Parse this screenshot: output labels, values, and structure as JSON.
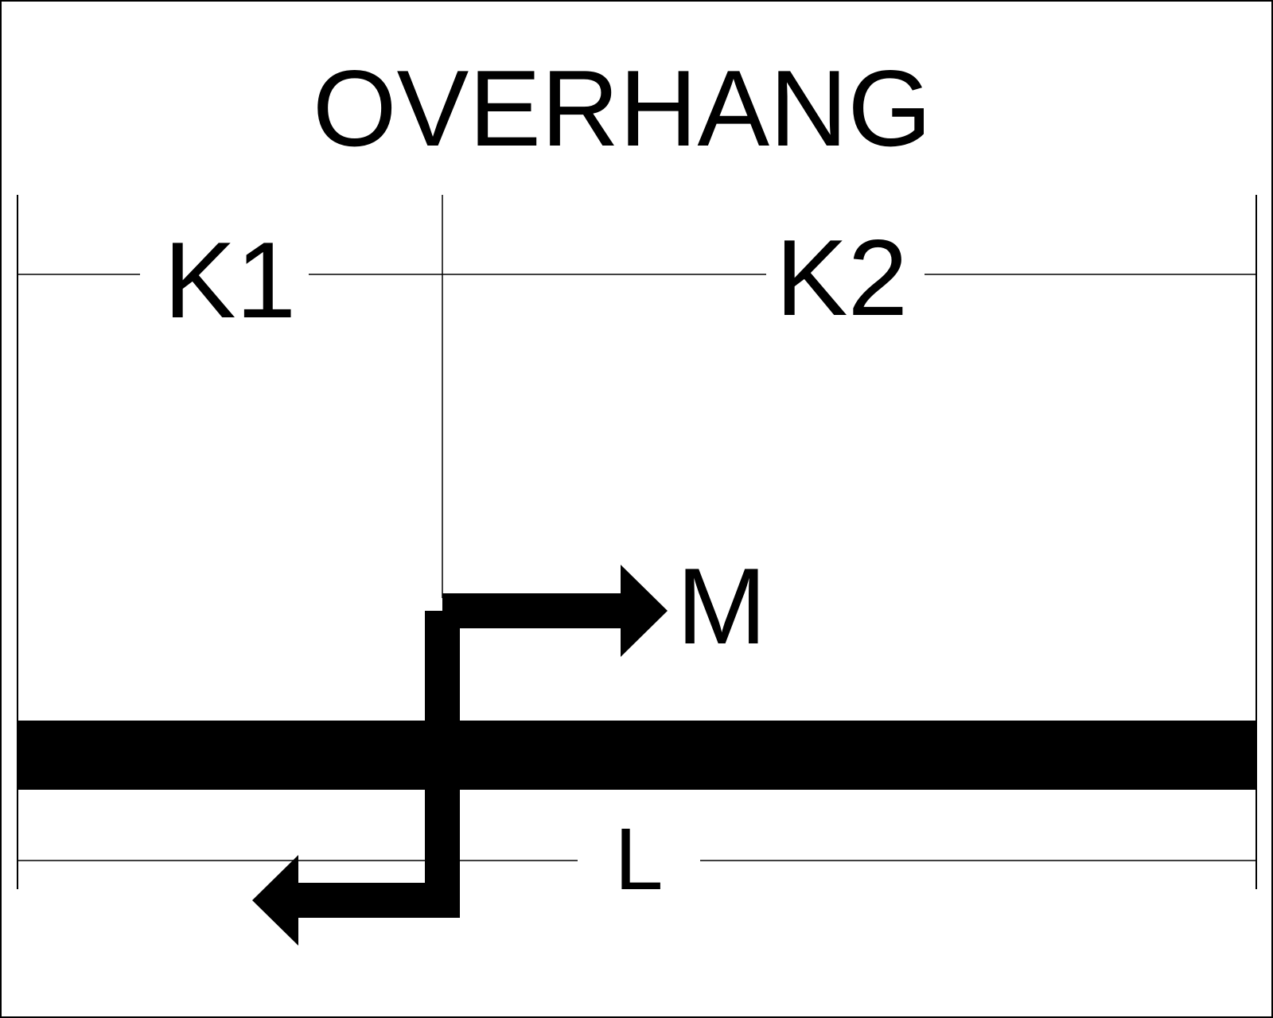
{
  "title": "OVERHANG",
  "dimensions": {
    "k1_label": "K1",
    "k2_label": "K2",
    "total_label": "L"
  },
  "moment": {
    "label": "M"
  },
  "colors": {
    "ink": "#000000",
    "background": "#ffffff"
  }
}
